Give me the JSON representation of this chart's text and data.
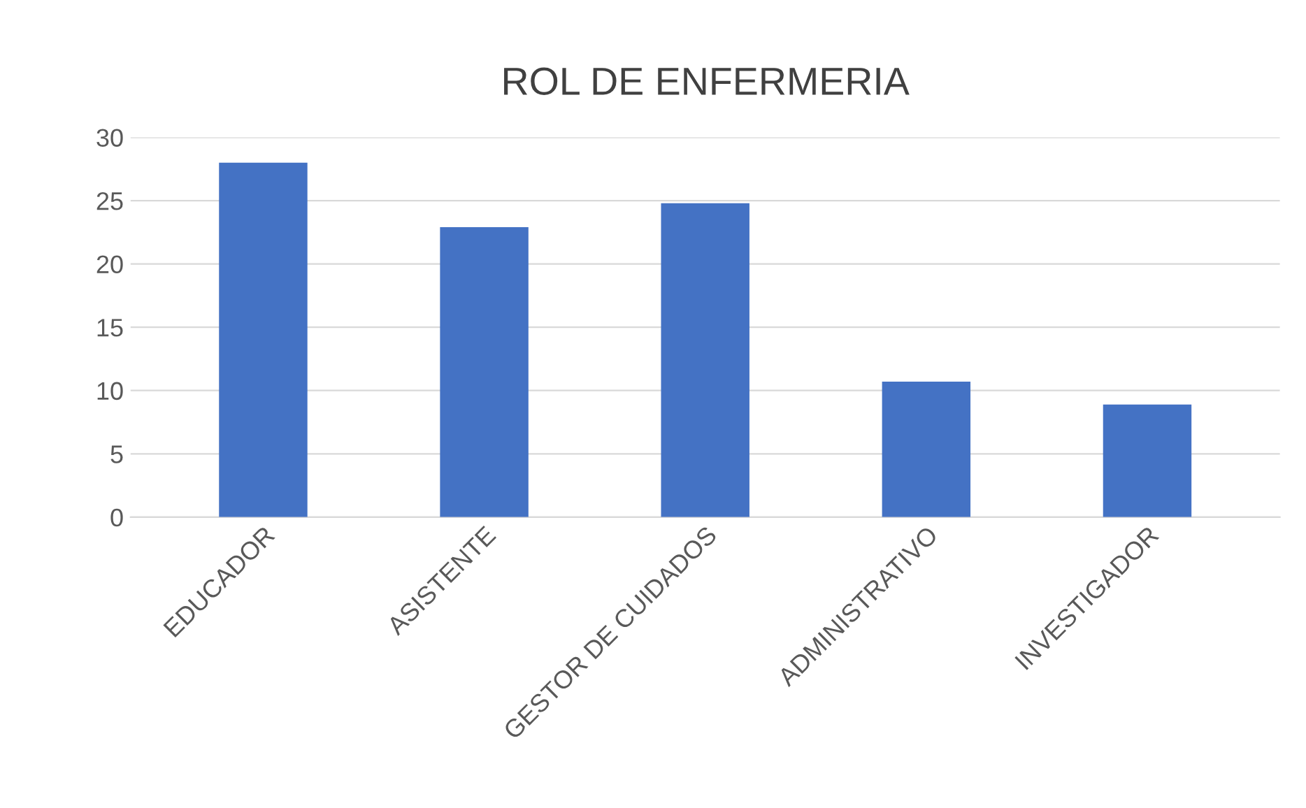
{
  "chart_data": {
    "type": "bar",
    "title": "ROL DE ENFERMERIA",
    "categories": [
      "EDUCADOR",
      "ASISTENTE",
      "GESTOR DE CUIDADOS",
      "ADMINISTRATIVO",
      "INVESTIGADOR"
    ],
    "values": [
      28,
      22.9,
      24.8,
      10.7,
      8.9
    ],
    "color": "#4472c4",
    "ylim": [
      0,
      30
    ],
    "yticks": [
      0,
      5,
      10,
      15,
      20,
      25,
      30
    ],
    "grid": "y"
  }
}
